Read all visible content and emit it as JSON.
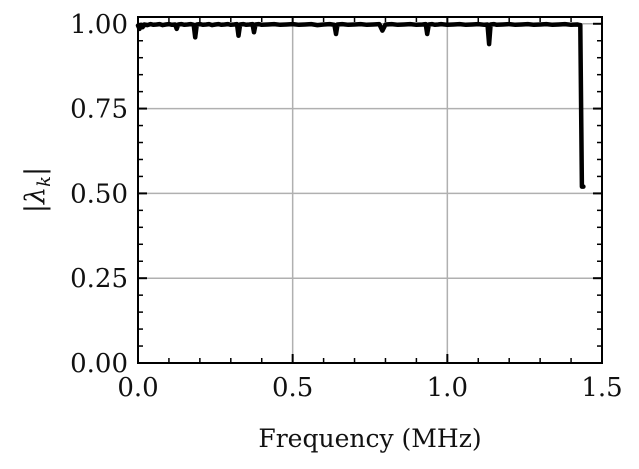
{
  "chart_data": {
    "type": "line",
    "title": "",
    "xlabel": "Frequency (MHz)",
    "ylabel": "|λ_k|",
    "ylabel_parts": {
      "bar_left": "|",
      "symbol": "λ",
      "subscript": "k",
      "bar_right": "|"
    },
    "xlim": [
      0.0,
      1.5
    ],
    "ylim": [
      0.0,
      1.02
    ],
    "x_ticks": [
      0.0,
      0.5,
      1.0,
      1.5
    ],
    "x_tick_labels": [
      "0.0",
      "0.5",
      "1.0",
      "1.5"
    ],
    "y_ticks": [
      0.0,
      0.25,
      0.5,
      0.75,
      1.0
    ],
    "y_tick_labels": [
      "0.00",
      "0.25",
      "0.50",
      "0.75",
      "1.00"
    ],
    "grid": true,
    "series": [
      {
        "color": "#000000",
        "x": [
          0.0,
          0.005,
          0.01,
          0.015,
          0.02,
          0.03,
          0.04,
          0.05,
          0.06,
          0.07,
          0.08,
          0.09,
          0.1,
          0.11,
          0.12,
          0.125,
          0.13,
          0.14,
          0.15,
          0.16,
          0.17,
          0.18,
          0.185,
          0.19,
          0.2,
          0.21,
          0.22,
          0.23,
          0.24,
          0.25,
          0.26,
          0.27,
          0.28,
          0.29,
          0.3,
          0.31,
          0.32,
          0.325,
          0.33,
          0.34,
          0.35,
          0.36,
          0.37,
          0.375,
          0.38,
          0.39,
          0.4,
          0.42,
          0.44,
          0.46,
          0.48,
          0.5,
          0.52,
          0.54,
          0.56,
          0.58,
          0.6,
          0.62,
          0.635,
          0.64,
          0.645,
          0.66,
          0.68,
          0.7,
          0.72,
          0.74,
          0.76,
          0.78,
          0.79,
          0.8,
          0.82,
          0.84,
          0.86,
          0.88,
          0.9,
          0.92,
          0.93,
          0.935,
          0.94,
          0.95,
          0.96,
          0.97,
          0.98,
          1.0,
          1.02,
          1.04,
          1.06,
          1.08,
          1.1,
          1.12,
          1.13,
          1.135,
          1.14,
          1.15,
          1.16,
          1.18,
          1.2,
          1.22,
          1.24,
          1.26,
          1.28,
          1.3,
          1.32,
          1.34,
          1.36,
          1.38,
          1.4,
          1.42,
          1.425,
          1.43,
          1.435,
          1.44
        ],
        "values": [
          0.995,
          0.985,
          0.997,
          0.99,
          0.998,
          0.996,
          0.999,
          0.997,
          0.998,
          0.999,
          0.996,
          0.998,
          0.999,
          0.997,
          0.998,
          0.985,
          0.998,
          0.999,
          0.997,
          0.998,
          0.999,
          0.997,
          0.96,
          0.998,
          0.999,
          0.997,
          0.998,
          0.999,
          0.996,
          0.998,
          0.999,
          0.997,
          0.998,
          0.999,
          0.997,
          0.998,
          0.999,
          0.965,
          0.998,
          0.999,
          0.997,
          0.998,
          0.999,
          0.975,
          0.998,
          0.999,
          0.997,
          0.998,
          0.999,
          0.997,
          0.998,
          0.999,
          0.997,
          0.998,
          0.999,
          0.996,
          0.998,
          0.999,
          0.997,
          0.97,
          0.998,
          0.999,
          0.997,
          0.998,
          0.999,
          0.997,
          0.998,
          0.999,
          0.98,
          0.998,
          0.999,
          0.997,
          0.998,
          0.999,
          0.997,
          0.998,
          0.999,
          0.97,
          0.998,
          0.999,
          0.997,
          0.998,
          0.999,
          0.997,
          0.998,
          0.999,
          0.997,
          0.998,
          0.999,
          0.997,
          0.998,
          0.94,
          0.998,
          0.999,
          0.997,
          0.998,
          0.999,
          0.997,
          0.998,
          0.999,
          0.997,
          0.998,
          0.999,
          0.997,
          0.998,
          0.999,
          0.997,
          0.998,
          0.997,
          0.996,
          0.52,
          0.52
        ]
      }
    ]
  }
}
